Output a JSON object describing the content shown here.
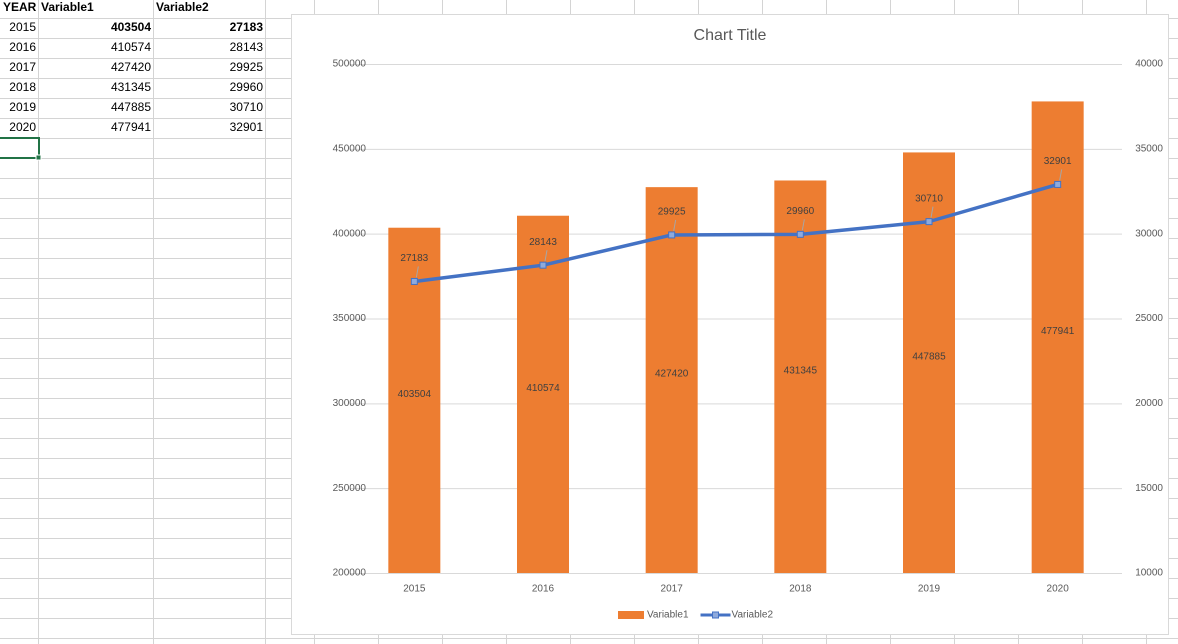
{
  "table": {
    "headers": [
      "YEAR",
      "Variable1",
      "Variable2"
    ],
    "rows": [
      [
        2015,
        403504,
        27183
      ],
      [
        2016,
        410574,
        28143
      ],
      [
        2017,
        427420,
        29925
      ],
      [
        2018,
        431345,
        29960
      ],
      [
        2019,
        447885,
        30710
      ],
      [
        2020,
        477941,
        32901
      ]
    ]
  },
  "chart_data": {
    "type": "bar",
    "title": "Chart Title",
    "categories": [
      "2015",
      "2016",
      "2017",
      "2018",
      "2019",
      "2020"
    ],
    "series": [
      {
        "name": "Variable1",
        "type": "bar",
        "color": "#ed7d31",
        "values": [
          403504,
          410574,
          427420,
          431345,
          447885,
          477941
        ]
      },
      {
        "name": "Variable2",
        "type": "line",
        "axis": "y2",
        "color": "#4472c4",
        "values": [
          27183,
          28143,
          29925,
          29960,
          30710,
          32901
        ]
      }
    ],
    "ylim": [
      200000,
      500000
    ],
    "yticks": [
      200000,
      250000,
      300000,
      350000,
      400000,
      450000,
      500000
    ],
    "y2lim": [
      10000,
      40000
    ],
    "y2ticks": [
      10000,
      15000,
      20000,
      25000,
      30000,
      35000,
      40000
    ],
    "grid": true,
    "legend": "bottom",
    "data_labels": true
  }
}
